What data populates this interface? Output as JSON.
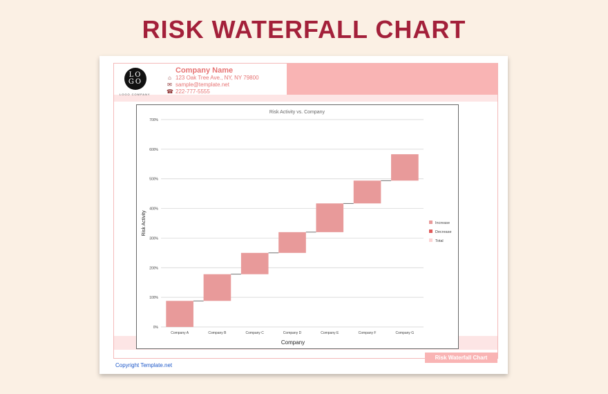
{
  "page_title": "RISK WATERFALL CHART",
  "header": {
    "logo_text_1": "LO",
    "logo_text_2": "GO",
    "logo_subtitle": "LOGO COMPANY",
    "company_name": "Company Name",
    "address": "123 Oak Tree Ave., NY, NY 79800",
    "email": "sample@template.net",
    "phone": "222-777-5555",
    "icons": [
      "home-icon",
      "mail-icon",
      "phone-icon"
    ]
  },
  "footer": {
    "badge": "Risk Waterfall Chart",
    "copyright": "Copyright Template.net"
  },
  "colors": {
    "title": "#a3203a",
    "increase": "#e89a9a",
    "decrease": "#e05a5a",
    "total": "#fbd3d3",
    "accent_band": "#f9b4b4"
  },
  "chart_data": {
    "type": "bar",
    "subtype": "waterfall",
    "title": "Risk Activity vs. Company",
    "xlabel": "Company",
    "ylabel": "Risk Activity",
    "categories": [
      "Company A",
      "Company B",
      "Company C",
      "Company D",
      "Company E",
      "Company F",
      "Company G"
    ],
    "increments": [
      88,
      90,
      72,
      70,
      97,
      77,
      89
    ],
    "y_ticks": [
      "0%",
      "100%",
      "200%",
      "300%",
      "400%",
      "500%",
      "600%",
      "700%"
    ],
    "ylim": [
      0,
      700
    ],
    "grid": true,
    "legend_position": "right",
    "legend": [
      "Increase",
      "Decrease",
      "Total"
    ]
  }
}
